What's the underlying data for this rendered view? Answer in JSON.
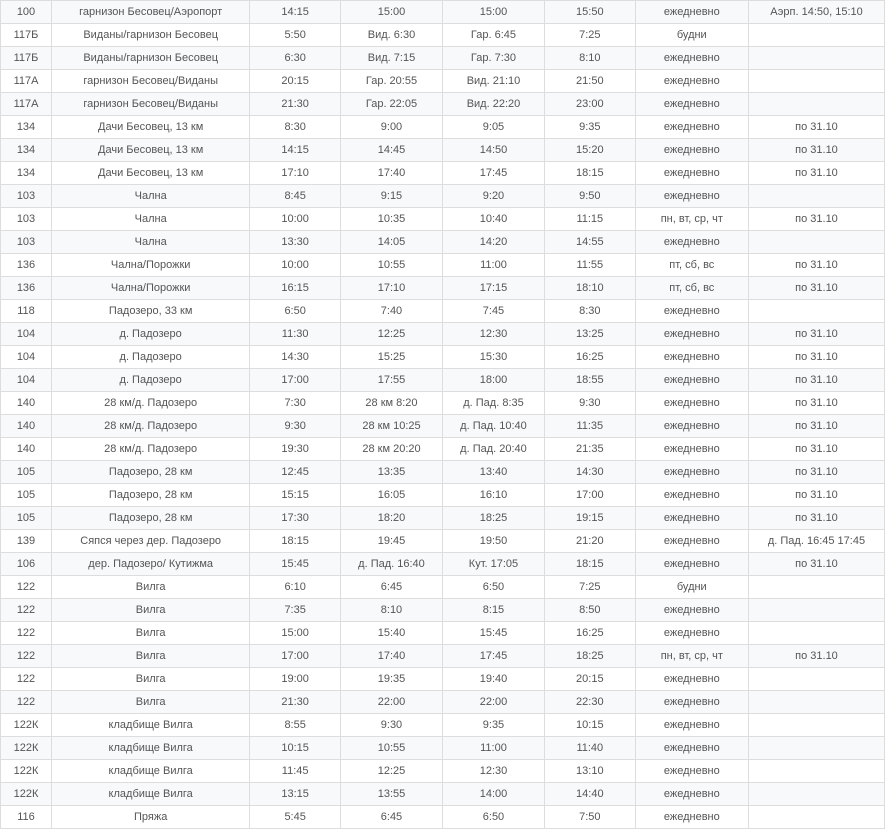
{
  "table": {
    "rows": [
      {
        "route": "100",
        "dest": "гарнизон Бесовец/Аэропорт",
        "t1": "14:15",
        "t2": "15:00",
        "t3": "15:00",
        "t4": "15:50",
        "days": "ежедневно",
        "note": "Аэрп. 14:50, 15:10"
      },
      {
        "route": "117Б",
        "dest": "Виданы/гарнизон Бесовец",
        "t1": "5:50",
        "t2": "Вид. 6:30",
        "t3": "Гар. 6:45",
        "t4": "7:25",
        "days": "будни",
        "note": ""
      },
      {
        "route": "117Б",
        "dest": "Виданы/гарнизон Бесовец",
        "t1": "6:30",
        "t2": "Вид. 7:15",
        "t3": "Гар. 7:30",
        "t4": "8:10",
        "days": "ежедневно",
        "note": ""
      },
      {
        "route": "117А",
        "dest": "гарнизон Бесовец/Виданы",
        "t1": "20:15",
        "t2": "Гар. 20:55",
        "t3": "Вид. 21:10",
        "t4": "21:50",
        "days": "ежедневно",
        "note": ""
      },
      {
        "route": "117А",
        "dest": "гарнизон Бесовец/Виданы",
        "t1": "21:30",
        "t2": "Гар. 22:05",
        "t3": "Вид. 22:20",
        "t4": "23:00",
        "days": "ежедневно",
        "note": ""
      },
      {
        "route": "134",
        "dest": "Дачи Бесовец, 13 км",
        "t1": "8:30",
        "t2": "9:00",
        "t3": "9:05",
        "t4": "9:35",
        "days": "ежедневно",
        "note": "по 31.10"
      },
      {
        "route": "134",
        "dest": "Дачи Бесовец, 13 км",
        "t1": "14:15",
        "t2": "14:45",
        "t3": "14:50",
        "t4": "15:20",
        "days": "ежедневно",
        "note": "по 31.10"
      },
      {
        "route": "134",
        "dest": "Дачи Бесовец, 13 км",
        "t1": "17:10",
        "t2": "17:40",
        "t3": "17:45",
        "t4": "18:15",
        "days": "ежедневно",
        "note": "по 31.10"
      },
      {
        "route": "103",
        "dest": "Чална",
        "t1": "8:45",
        "t2": "9:15",
        "t3": "9:20",
        "t4": "9:50",
        "days": "ежедневно",
        "note": ""
      },
      {
        "route": "103",
        "dest": "Чална",
        "t1": "10:00",
        "t2": "10:35",
        "t3": "10:40",
        "t4": "11:15",
        "days": "пн, вт, ср, чт",
        "note": "по 31.10"
      },
      {
        "route": "103",
        "dest": "Чална",
        "t1": "13:30",
        "t2": "14:05",
        "t3": "14:20",
        "t4": "14:55",
        "days": "ежедневно",
        "note": ""
      },
      {
        "route": "136",
        "dest": "Чална/Порожки",
        "t1": "10:00",
        "t2": "10:55",
        "t3": "11:00",
        "t4": "11:55",
        "days": "пт, сб, вс",
        "note": "по 31.10"
      },
      {
        "route": "136",
        "dest": "Чална/Порожки",
        "t1": "16:15",
        "t2": "17:10",
        "t3": "17:15",
        "t4": "18:10",
        "days": "пт, сб, вс",
        "note": "по 31.10"
      },
      {
        "route": "118",
        "dest": "Падозеро, 33 км",
        "t1": "6:50",
        "t2": "7:40",
        "t3": "7:45",
        "t4": "8:30",
        "days": "ежедневно",
        "note": ""
      },
      {
        "route": "104",
        "dest": "д. Падозеро",
        "t1": "11:30",
        "t2": "12:25",
        "t3": "12:30",
        "t4": "13:25",
        "days": "ежедневно",
        "note": "по 31.10"
      },
      {
        "route": "104",
        "dest": "д. Падозеро",
        "t1": "14:30",
        "t2": "15:25",
        "t3": "15:30",
        "t4": "16:25",
        "days": "ежедневно",
        "note": "по 31.10"
      },
      {
        "route": "104",
        "dest": "д. Падозеро",
        "t1": "17:00",
        "t2": "17:55",
        "t3": "18:00",
        "t4": "18:55",
        "days": "ежедневно",
        "note": "по 31.10"
      },
      {
        "route": "140",
        "dest": "28 км/д. Падозеро",
        "t1": "7:30",
        "t2": "28 км 8:20",
        "t3": "д. Пад. 8:35",
        "t4": "9:30",
        "days": "ежедневно",
        "note": "по 31.10"
      },
      {
        "route": "140",
        "dest": "28 км/д. Падозеро",
        "t1": "9:30",
        "t2": "28 км 10:25",
        "t3": "д. Пад. 10:40",
        "t4": "11:35",
        "days": "ежедневно",
        "note": "по 31.10"
      },
      {
        "route": "140",
        "dest": "28 км/д. Падозеро",
        "t1": "19:30",
        "t2": "28 км 20:20",
        "t3": "д. Пад. 20:40",
        "t4": "21:35",
        "days": "ежедневно",
        "note": "по 31.10"
      },
      {
        "route": "105",
        "dest": "Падозеро, 28 км",
        "t1": "12:45",
        "t2": "13:35",
        "t3": "13:40",
        "t4": "14:30",
        "days": "ежедневно",
        "note": "по 31.10"
      },
      {
        "route": "105",
        "dest": "Падозеро, 28 км",
        "t1": "15:15",
        "t2": "16:05",
        "t3": "16:10",
        "t4": "17:00",
        "days": "ежедневно",
        "note": "по 31.10"
      },
      {
        "route": "105",
        "dest": "Падозеро, 28 км",
        "t1": "17:30",
        "t2": "18:20",
        "t3": "18:25",
        "t4": "19:15",
        "days": "ежедневно",
        "note": "по 31.10"
      },
      {
        "route": "139",
        "dest": "Сяпся через дер. Падозеро",
        "t1": "18:15",
        "t2": "19:45",
        "t3": "19:50",
        "t4": "21:20",
        "days": "ежедневно",
        "note": "д. Пад. 16:45 17:45"
      },
      {
        "route": "106",
        "dest": "дер. Падозеро/ Кутижма",
        "t1": "15:45",
        "t2": "д. Пад. 16:40",
        "t3": "Кут. 17:05",
        "t4": "18:15",
        "days": "ежедневно",
        "note": "по 31.10"
      },
      {
        "route": "122",
        "dest": "Вилга",
        "t1": "6:10",
        "t2": "6:45",
        "t3": "6:50",
        "t4": "7:25",
        "days": "будни",
        "note": ""
      },
      {
        "route": "122",
        "dest": "Вилга",
        "t1": "7:35",
        "t2": "8:10",
        "t3": "8:15",
        "t4": "8:50",
        "days": "ежедневно",
        "note": ""
      },
      {
        "route": "122",
        "dest": "Вилга",
        "t1": "15:00",
        "t2": "15:40",
        "t3": "15:45",
        "t4": "16:25",
        "days": "ежедневно",
        "note": ""
      },
      {
        "route": "122",
        "dest": "Вилга",
        "t1": "17:00",
        "t2": "17:40",
        "t3": "17:45",
        "t4": "18:25",
        "days": "пн, вт, ср, чт",
        "note": "по 31.10"
      },
      {
        "route": "122",
        "dest": "Вилга",
        "t1": "19:00",
        "t2": "19:35",
        "t3": "19:40",
        "t4": "20:15",
        "days": "ежедневно",
        "note": ""
      },
      {
        "route": "122",
        "dest": "Вилга",
        "t1": "21:30",
        "t2": "22:00",
        "t3": "22:00",
        "t4": "22:30",
        "days": "ежедневно",
        "note": ""
      },
      {
        "route": "122К",
        "dest": "кладбище Вилга",
        "t1": "8:55",
        "t2": "9:30",
        "t3": "9:35",
        "t4": "10:15",
        "days": "ежедневно",
        "note": ""
      },
      {
        "route": "122К",
        "dest": "кладбище Вилга",
        "t1": "10:15",
        "t2": "10:55",
        "t3": "11:00",
        "t4": "11:40",
        "days": "ежедневно",
        "note": ""
      },
      {
        "route": "122К",
        "dest": "кладбище Вилга",
        "t1": "11:45",
        "t2": "12:25",
        "t3": "12:30",
        "t4": "13:10",
        "days": "ежедневно",
        "note": ""
      },
      {
        "route": "122К",
        "dest": "кладбище Вилга",
        "t1": "13:15",
        "t2": "13:55",
        "t3": "14:00",
        "t4": "14:40",
        "days": "ежедневно",
        "note": ""
      },
      {
        "route": "116",
        "dest": "Пряжа",
        "t1": "5:45",
        "t2": "6:45",
        "t3": "6:50",
        "t4": "7:50",
        "days": "ежедневно",
        "note": ""
      }
    ]
  }
}
